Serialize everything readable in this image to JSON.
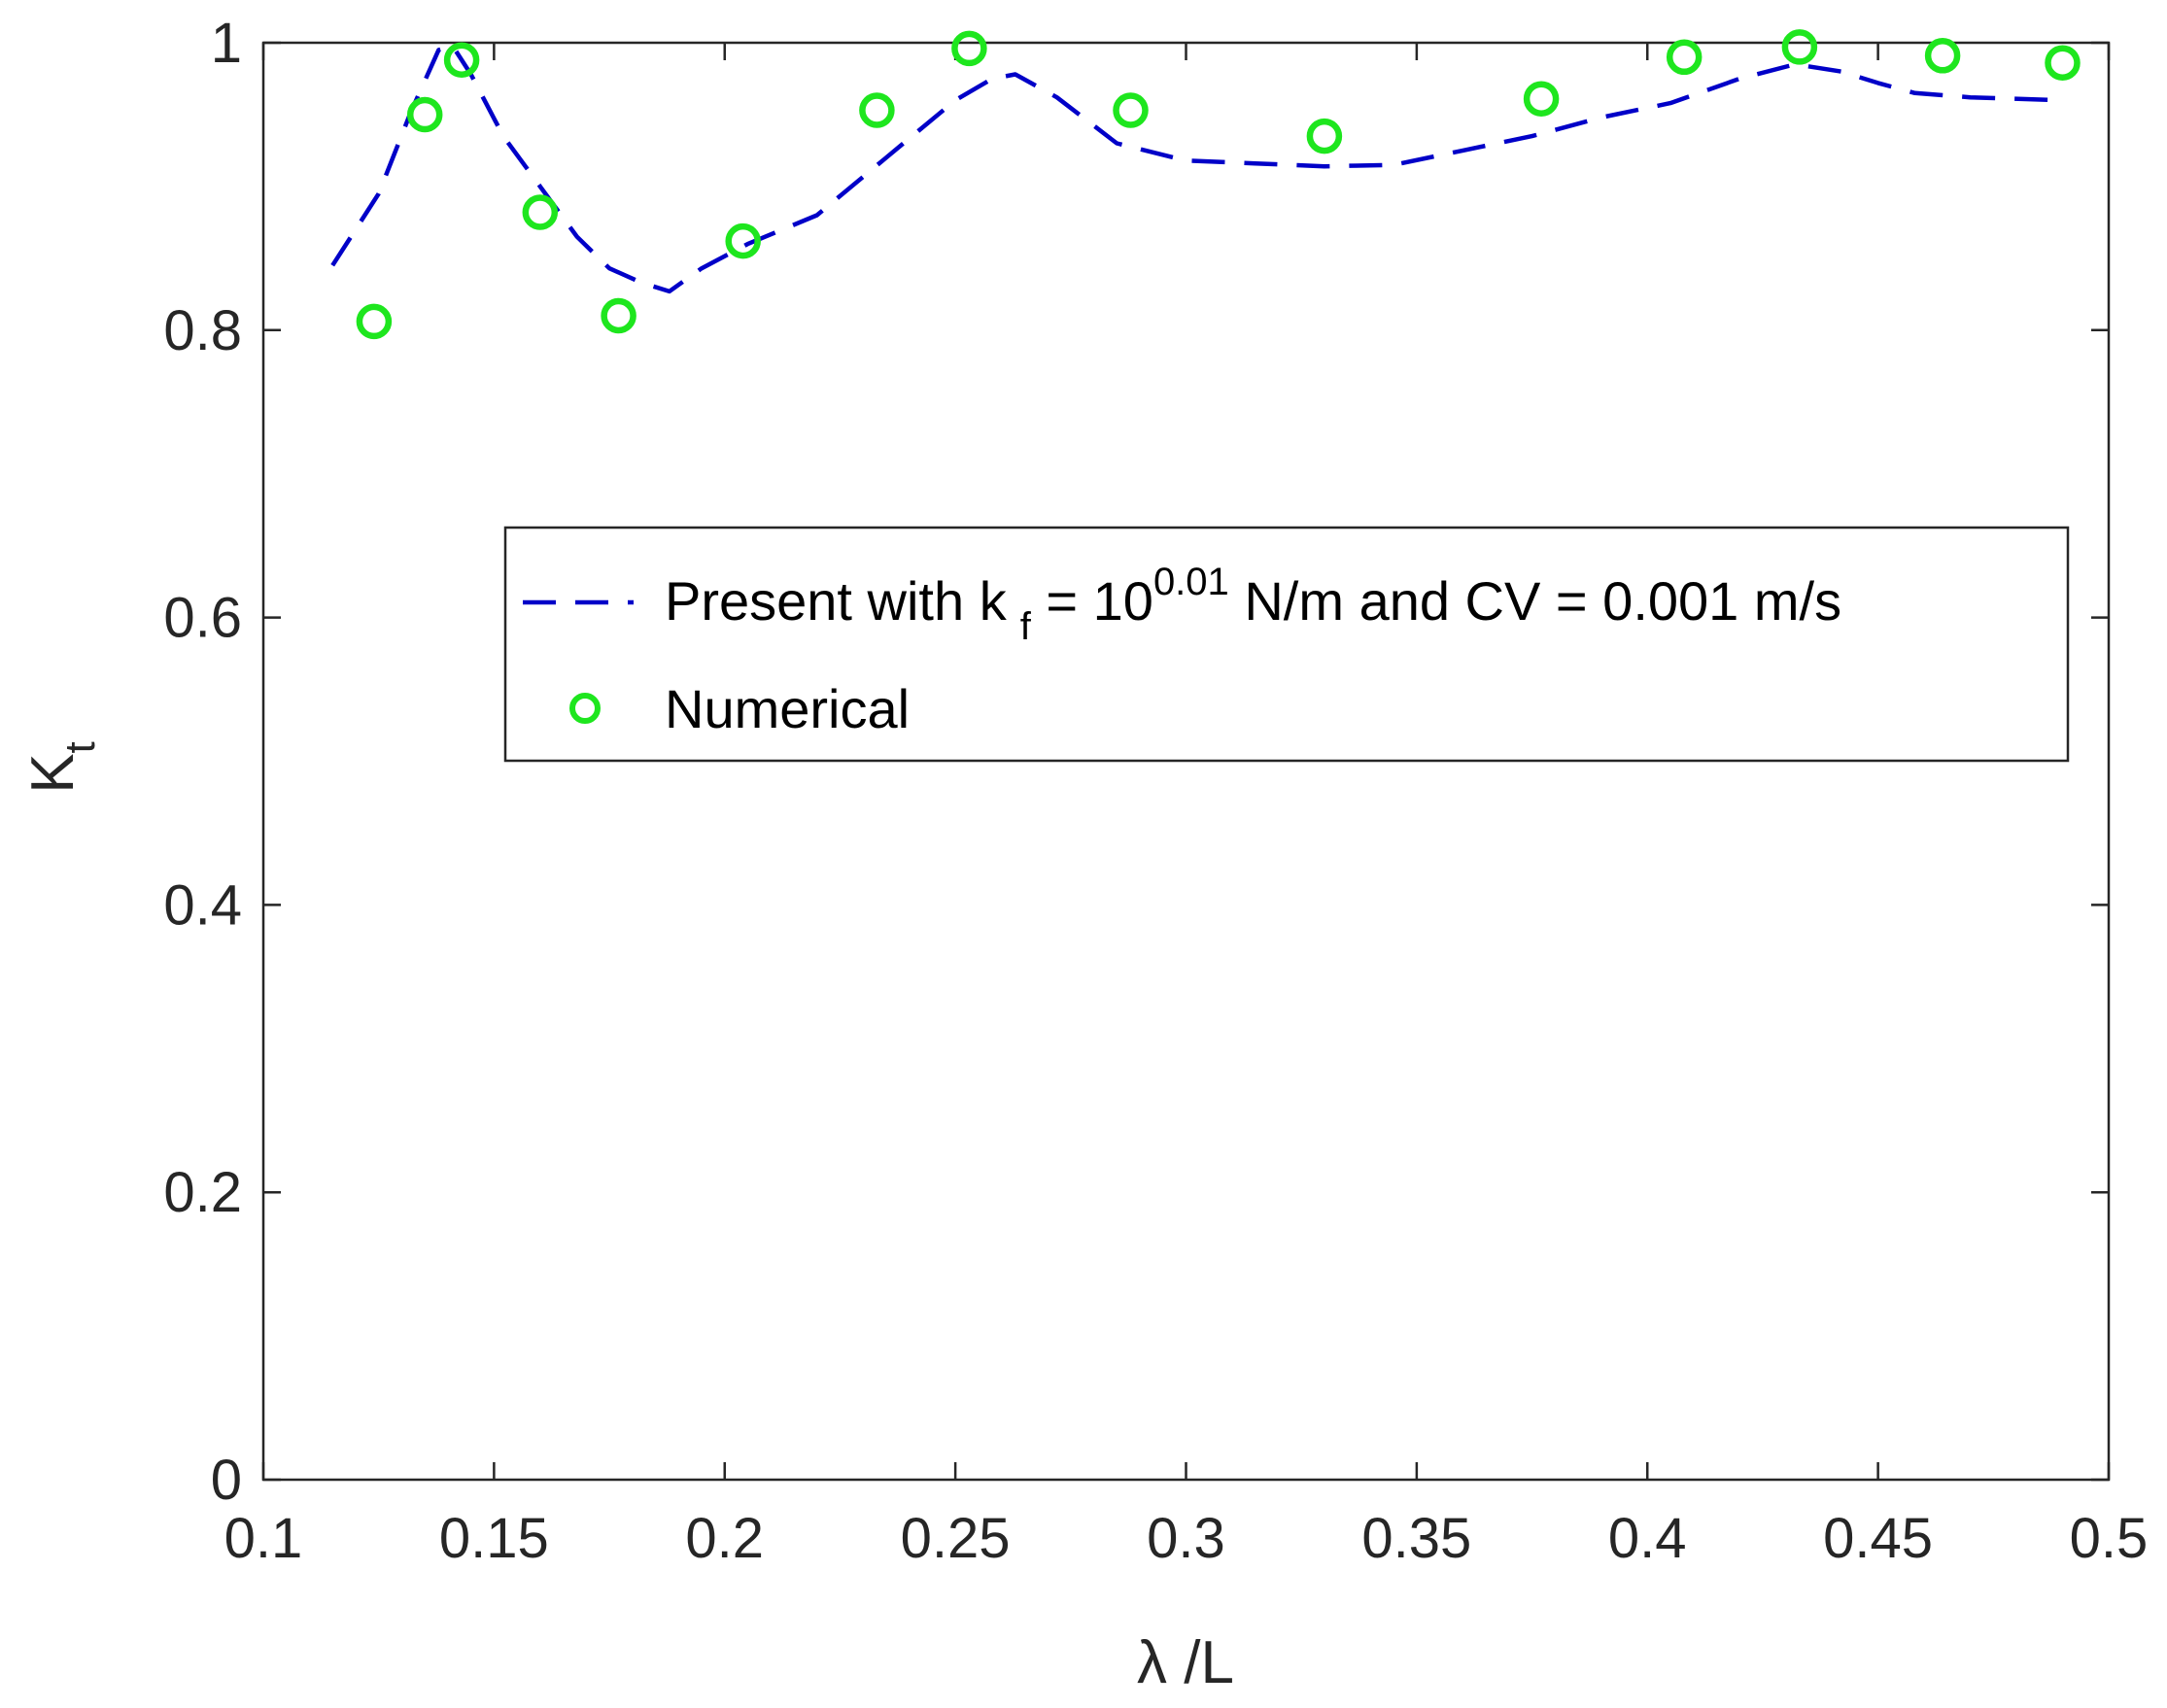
{
  "chart_data": {
    "type": "line",
    "title": "",
    "xlabel": "λ /L",
    "ylabel": "K",
    "ylabel_subscript": "t",
    "xlim": [
      0.1,
      0.5
    ],
    "ylim": [
      0,
      1
    ],
    "xticks": [
      0.1,
      0.15,
      0.2,
      0.25,
      0.3,
      0.35,
      0.4,
      0.45,
      0.5
    ],
    "xtick_labels": [
      "0.1",
      "0.15",
      "0.2",
      "0.25",
      "0.3",
      "0.35",
      "0.4",
      "0.45",
      "0.5"
    ],
    "yticks": [
      0,
      0.2,
      0.4,
      0.6,
      0.8,
      1
    ],
    "ytick_labels": [
      "0",
      "0.2",
      "0.4",
      "0.6",
      "0.8",
      "1"
    ],
    "grid": false,
    "legend_position": "center-right",
    "colors": {
      "present": "#0000c8",
      "numerical": "#1ee61e",
      "axis": "#262626"
    },
    "series": [
      {
        "name": "Present with k f = 10^0.01 N/m and CV = 0.001 m/s",
        "legend_parts": {
          "prefix": "Present with k",
          "sub": "f",
          "mid": " = 10",
          "sup": "0.01",
          "suffix": " N/m and CV = 0.001 m/s"
        },
        "style": "dashed",
        "x": [
          0.115,
          0.125,
          0.132,
          0.138,
          0.141,
          0.145,
          0.152,
          0.16,
          0.168,
          0.175,
          0.182,
          0.188,
          0.195,
          0.205,
          0.22,
          0.235,
          0.25,
          0.258,
          0.263,
          0.272,
          0.285,
          0.3,
          0.315,
          0.33,
          0.345,
          0.36,
          0.375,
          0.39,
          0.405,
          0.42,
          0.432,
          0.442,
          0.45,
          0.458,
          0.47,
          0.49
        ],
        "y": [
          0.845,
          0.895,
          0.952,
          0.995,
          0.998,
          0.978,
          0.935,
          0.9,
          0.865,
          0.843,
          0.833,
          0.827,
          0.843,
          0.86,
          0.88,
          0.92,
          0.96,
          0.975,
          0.978,
          0.962,
          0.93,
          0.918,
          0.916,
          0.914,
          0.915,
          0.925,
          0.935,
          0.948,
          0.958,
          0.975,
          0.985,
          0.98,
          0.972,
          0.965,
          0.962,
          0.96
        ]
      },
      {
        "name": "Numerical",
        "style": "markers",
        "x": [
          0.124,
          0.135,
          0.143,
          0.16,
          0.177,
          0.204,
          0.233,
          0.253,
          0.288,
          0.33,
          0.377,
          0.408,
          0.433,
          0.464,
          0.49
        ],
        "y": [
          0.806,
          0.95,
          0.988,
          0.882,
          0.81,
          0.862,
          0.953,
          0.996,
          0.953,
          0.935,
          0.961,
          0.99,
          0.997,
          0.991,
          0.986
        ]
      }
    ]
  }
}
